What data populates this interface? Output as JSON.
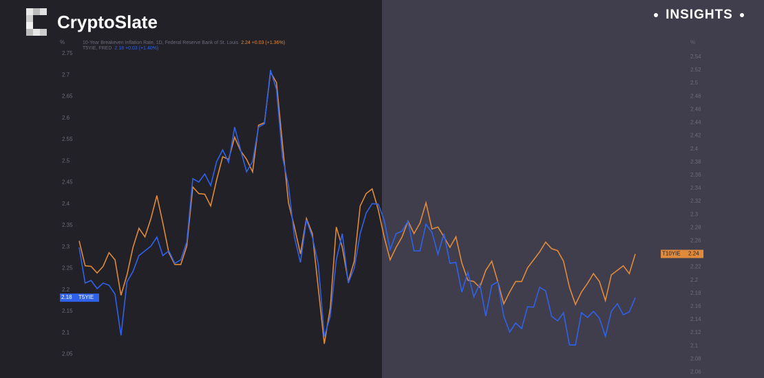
{
  "brand": "CryptoSlate",
  "badge": "INSIGHTS",
  "chart_data": {
    "type": "line",
    "y_unit": "%",
    "y2_unit": "%",
    "ylim": [
      1.995,
      2.779
    ],
    "yticks": [
      2.05,
      2.1,
      2.15,
      2.2,
      2.25,
      2.3,
      2.35,
      2.4,
      2.45,
      2.5,
      2.55,
      2.6,
      2.65,
      2.7,
      2.75
    ],
    "y2lim": [
      2.051,
      2.564
    ],
    "y2ticks": [
      2.06,
      2.08,
      2.1,
      2.12,
      2.14,
      2.16,
      2.18,
      2.2,
      2.22,
      2.24,
      2.26,
      2.28,
      2.3,
      2.32,
      2.34,
      2.36,
      2.38,
      2.4,
      2.42,
      2.44,
      2.46,
      2.48,
      2.5,
      2.52,
      2.54
    ],
    "series": [
      {
        "name": "10-Year Breakeven Inflation Rate, 1D, Federal Reserve Bank of St. Louis",
        "legend_value": "2.24 +0.03 (+1.36%)",
        "tag": "T10YIE",
        "last_label": "2.24",
        "color": "#e08a3c",
        "axis": "y2",
        "values": [
          2.26,
          2.222,
          2.221,
          2.211,
          2.221,
          2.242,
          2.231,
          2.177,
          2.208,
          2.25,
          2.279,
          2.266,
          2.294,
          2.329,
          2.287,
          2.242,
          2.224,
          2.224,
          2.252,
          2.342,
          2.332,
          2.331,
          2.313,
          2.353,
          2.388,
          2.384,
          2.418,
          2.397,
          2.384,
          2.365,
          2.436,
          2.44,
          2.517,
          2.501,
          2.407,
          2.318,
          2.281,
          2.24,
          2.294,
          2.271,
          2.187,
          2.103,
          2.158,
          2.281,
          2.25,
          2.198,
          2.229,
          2.313,
          2.332,
          2.339,
          2.308,
          2.266,
          2.231,
          2.25,
          2.266,
          2.29,
          2.271,
          2.287,
          2.318,
          2.278,
          2.281,
          2.266,
          2.25,
          2.266,
          2.226,
          2.2,
          2.198,
          2.189,
          2.215,
          2.229,
          2.198,
          2.164,
          2.182,
          2.198,
          2.198,
          2.219,
          2.231,
          2.243,
          2.258,
          2.248,
          2.245,
          2.229,
          2.189,
          2.163,
          2.182,
          2.195,
          2.21,
          2.198,
          2.169,
          2.208,
          2.215,
          2.222,
          2.21,
          2.24
        ]
      },
      {
        "name": "T5YIE, FRED",
        "legend_value": "2.18 +0.03 (+1.40%)",
        "tag": "T5YIE",
        "last_label": "2.18",
        "color": "#2f62e8",
        "axis": "y",
        "values": [
          2.299,
          2.216,
          2.222,
          2.203,
          2.216,
          2.211,
          2.19,
          2.094,
          2.219,
          2.243,
          2.28,
          2.291,
          2.302,
          2.323,
          2.28,
          2.291,
          2.262,
          2.27,
          2.312,
          2.459,
          2.451,
          2.47,
          2.443,
          2.499,
          2.526,
          2.497,
          2.579,
          2.526,
          2.475,
          2.499,
          2.579,
          2.587,
          2.712,
          2.667,
          2.51,
          2.443,
          2.323,
          2.264,
          2.363,
          2.323,
          2.259,
          2.091,
          2.139,
          2.27,
          2.331,
          2.216,
          2.251,
          2.331,
          2.379,
          2.401,
          2.4,
          2.363,
          2.294,
          2.331,
          2.337,
          2.36,
          2.291,
          2.291,
          2.353,
          2.334,
          2.283,
          2.331,
          2.262,
          2.264,
          2.195,
          2.241,
          2.184,
          2.214,
          2.139,
          2.211,
          2.219,
          2.139,
          2.102,
          2.123,
          2.11,
          2.161,
          2.16,
          2.206,
          2.198,
          2.139,
          2.128,
          2.147,
          2.072,
          2.072,
          2.147,
          2.136,
          2.15,
          2.134,
          2.092,
          2.15,
          2.168,
          2.142,
          2.149,
          2.182
        ]
      }
    ]
  }
}
